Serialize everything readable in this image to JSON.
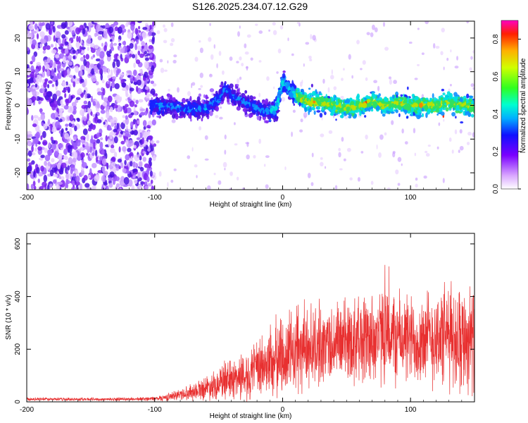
{
  "title": "S126.2025.234.07.12.G29",
  "colors": {
    "snr_line": "#e83030",
    "spec_low": "#7a2be0",
    "spec_mid": "#2040e0",
    "frame": "#000000",
    "background": "#ffffff"
  },
  "chart_data": [
    {
      "type": "heatmap",
      "name": "spectrogram",
      "xlabel": "Height of straight line (km)",
      "ylabel": "Frequency (Hz)",
      "xlim": [
        -200,
        150
      ],
      "ylim": [
        -25,
        25
      ],
      "xticks": [
        -200,
        -100,
        0,
        100
      ],
      "xtick_labels": [
        "-200",
        "-100",
        "0",
        "100"
      ],
      "yticks": [
        -20,
        -10,
        0,
        10,
        20
      ],
      "ytick_labels": [
        "-20",
        "-10",
        "0",
        "10",
        "20"
      ],
      "colorbar": {
        "label": "Normalized spectral amplitude",
        "range": [
          0,
          0.9
        ],
        "ticks": [
          0.0,
          0.2,
          0.4,
          0.6,
          0.8
        ],
        "tick_labels": [
          "0.0",
          "0.2",
          "0.4",
          "0.6",
          "0.8"
        ]
      },
      "signal_track": {
        "description_points_height_km": [
          -100,
          -90,
          -80,
          -70,
          -60,
          -50,
          -45,
          -40,
          -35,
          -30,
          -20,
          -10,
          -5,
          0,
          5,
          10,
          20,
          30,
          40,
          50,
          60,
          70,
          80,
          90,
          100,
          110,
          120,
          130,
          140,
          150
        ],
        "description_points_freq_hz": [
          0,
          0,
          -1,
          -1,
          -1,
          2,
          5,
          3,
          2,
          1,
          -1,
          -2,
          -1,
          7,
          5,
          3,
          1,
          1,
          0,
          -1,
          0,
          1,
          0,
          1,
          0,
          0,
          0,
          1,
          0,
          0
        ]
      }
    },
    {
      "type": "line",
      "name": "snr",
      "xlabel": "Height of straight line (km)",
      "ylabel": "SNR (10 * v/v)",
      "xlim": [
        -200,
        150
      ],
      "ylim": [
        0,
        640
      ],
      "xticks": [
        -200,
        -100,
        0,
        100
      ],
      "xtick_labels": [
        "-200",
        "-100",
        "0",
        "100"
      ],
      "yticks": [
        0,
        200,
        400,
        600
      ],
      "ytick_labels": [
        "0",
        "200",
        "400",
        "600"
      ],
      "envelope": {
        "x": [
          -200,
          -150,
          -120,
          -100,
          -90,
          -80,
          -70,
          -60,
          -50,
          -40,
          -30,
          -20,
          -10,
          0,
          10,
          20,
          30,
          40,
          50,
          60,
          70,
          80,
          90,
          100,
          110,
          120,
          130,
          140,
          150
        ],
        "mean": [
          10,
          10,
          10,
          12,
          18,
          28,
          40,
          55,
          70,
          85,
          100,
          120,
          150,
          175,
          190,
          205,
          215,
          225,
          235,
          240,
          245,
          250,
          245,
          235,
          240,
          245,
          250,
          245,
          240
        ],
        "spread": [
          6,
          6,
          6,
          8,
          14,
          22,
          32,
          45,
          60,
          75,
          95,
          110,
          140,
          160,
          160,
          160,
          150,
          150,
          160,
          170,
          180,
          180,
          175,
          170,
          180,
          190,
          200,
          200,
          195
        ]
      }
    }
  ]
}
